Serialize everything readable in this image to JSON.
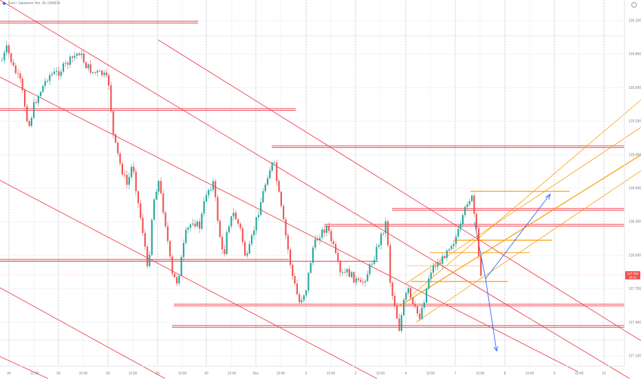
{
  "header": {
    "symbol": "Euro / Japanese Yen, 3h, OANDA"
  },
  "price_tag": {
    "value": "127.059",
    "countdown": "29:16"
  },
  "colors": {
    "up": "#26a69a",
    "down": "#ef5350",
    "level": "#f23645",
    "fib": "#ff9800",
    "arrow": "#2962ff",
    "grid": "#f0f3fa"
  },
  "chart_data": {
    "type": "candlestick",
    "title": "",
    "instrument": "Euro / Japanese Yen, 3h, OANDA",
    "ylim": [
      127.1,
      130.1
    ],
    "y_ticks": [
      127.1,
      127.4,
      127.7,
      128.0,
      128.3,
      128.6,
      128.9,
      129.2,
      129.5,
      129.8,
      130.1
    ],
    "y_tick_labels": [
      "127.100",
      "127.400",
      "127.700",
      "128.000",
      "128.300",
      "128.600",
      "128.900",
      "129.200",
      "129.500",
      "129.800",
      "130.100"
    ],
    "x_tick_labels": [
      "24",
      "12:00",
      "25",
      "12:00",
      "26",
      "12:00",
      "29",
      "12:00",
      "30",
      "12:00",
      "Dec",
      "12:00",
      "2",
      "12:00",
      "3",
      "12:00",
      "4",
      "12:00",
      "7",
      "12:00",
      "8",
      "12:00",
      "9",
      "12:00",
      "10"
    ],
    "last_price": 127.059,
    "horizontal_levels": [
      130.05,
      129.12,
      128.82,
      128.22,
      128.06,
      127.72,
      127.53
    ],
    "annotations": [
      "descending parallel channel",
      "ascending fibonacci channel",
      "projection arrows"
    ]
  }
}
